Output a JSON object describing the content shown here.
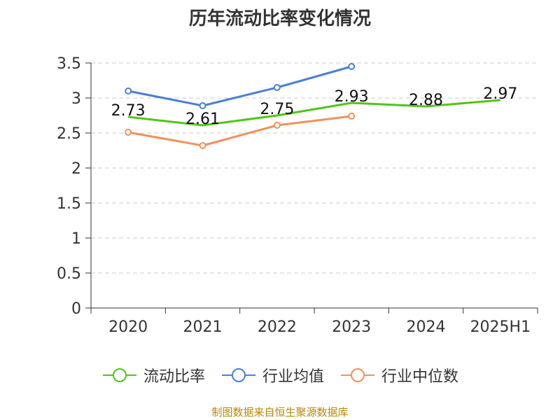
{
  "title": "历年流动比率变化情况",
  "source": "制图数据来自恒生聚源数据库",
  "chart_data": {
    "type": "line",
    "categories": [
      "2020",
      "2021",
      "2022",
      "2023",
      "2024",
      "2025H1"
    ],
    "ylim": [
      0,
      3.5
    ],
    "yticks": [
      "0",
      "0.5",
      "1",
      "1.5",
      "2",
      "2.5",
      "3",
      "3.5"
    ],
    "grid": true,
    "legend_position": "bottom",
    "series": [
      {
        "name": "流动比率",
        "color": "#52c41a",
        "values": [
          2.73,
          2.61,
          2.75,
          2.93,
          2.88,
          2.97
        ],
        "labels": [
          "2.73",
          "2.61",
          "2.75",
          "2.93",
          "2.88",
          "2.97"
        ]
      },
      {
        "name": "行业均值",
        "color": "#4a7fd6",
        "values": [
          3.1,
          2.89,
          3.15,
          3.45,
          null,
          null
        ]
      },
      {
        "name": "行业中位数",
        "color": "#f4905a",
        "values": [
          2.51,
          2.32,
          2.61,
          2.74,
          null,
          null
        ]
      }
    ]
  }
}
